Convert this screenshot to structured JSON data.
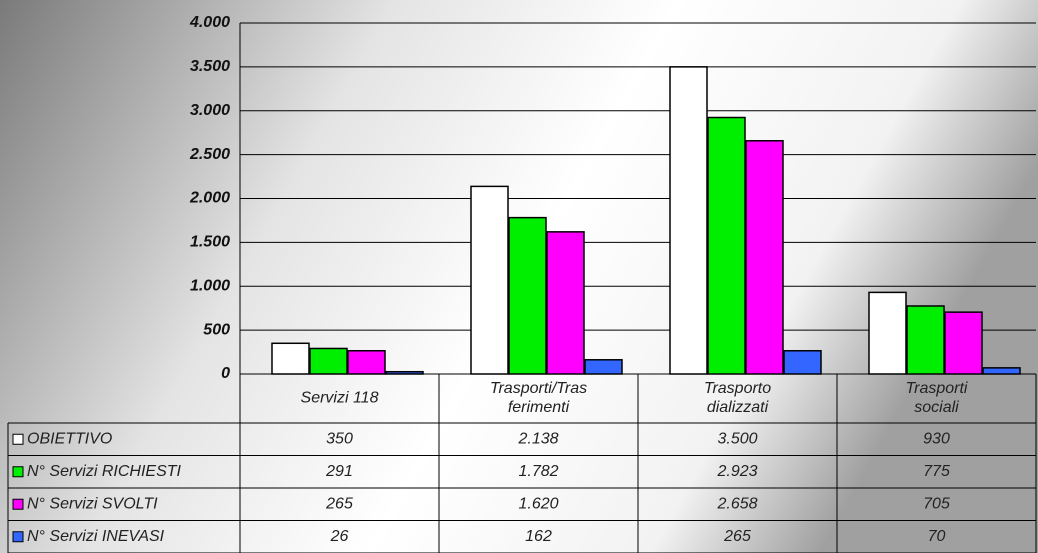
{
  "chart_data": {
    "type": "bar",
    "categories": [
      "Servizi 118",
      "Trasporti/Tras\nferimenti",
      "Trasporto\ndializzati",
      "Trasporti\nsociali"
    ],
    "series": [
      {
        "name": "OBIETTIVO",
        "color": "#ffffff",
        "values": [
          350,
          2138,
          3500,
          930
        ],
        "value_labels": [
          "350",
          "2.138",
          "3.500",
          "930"
        ]
      },
      {
        "name": "N° Servizi RICHIESTI",
        "color": "#00ee00",
        "values": [
          291,
          1782,
          2923,
          775
        ],
        "value_labels": [
          "291",
          "1.782",
          "2.923",
          "775"
        ]
      },
      {
        "name": "N° Servizi SVOLTI",
        "color": "#ff00ff",
        "values": [
          265,
          1620,
          2658,
          705
        ],
        "value_labels": [
          "265",
          "1.620",
          "2.658",
          "705"
        ]
      },
      {
        "name": "N° Servizi INEVASI",
        "color": "#3366ff",
        "values": [
          26,
          162,
          265,
          70
        ],
        "value_labels": [
          "26",
          "162",
          "265",
          "70"
        ]
      }
    ],
    "ylim": [
      0,
      4000
    ],
    "yticks": [
      0,
      500,
      {
        "value": 1000,
        "label": "1.000"
      },
      {
        "value": 1500,
        "label": "1.500"
      },
      {
        "value": 2000,
        "label": "2.000"
      },
      {
        "value": 2500,
        "label": "2.500"
      },
      {
        "value": 3000,
        "label": "3.000"
      },
      {
        "value": 3500,
        "label": "3.500"
      },
      {
        "value": 4000,
        "label": "4.000"
      }
    ],
    "grid": true
  }
}
